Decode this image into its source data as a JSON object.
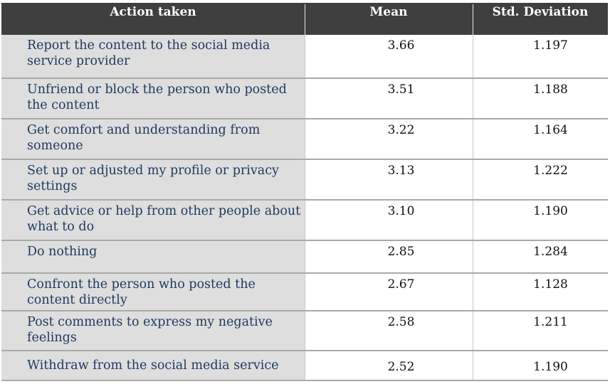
{
  "table": {
    "headers": {
      "action": "Action taken",
      "mean": "Mean",
      "sd": "Std. Deviation"
    },
    "rows": [
      {
        "action": "Report the content to the social media service provider",
        "mean": "3.66",
        "sd": "1.197"
      },
      {
        "action": " Unfriend or block the person who posted the content",
        "mean": "3.51",
        "sd": "1.188"
      },
      {
        "action": " Get comfort and understanding from someone",
        "mean": "3.22",
        "sd": "1.164"
      },
      {
        "action": " Set up or adjusted my profile or privacy settings",
        "mean": "3.13",
        "sd": "1.222"
      },
      {
        "action": " Get advice or help from other people about what to do",
        "mean": "3.10",
        "sd": "1.190"
      },
      {
        "action": " Do nothing",
        "mean": "2.85",
        "sd": "1.284"
      },
      {
        "action": "Confront the person who posted the content directly",
        "mean": "2.67",
        "sd": "1.128"
      },
      {
        "action": "Post comments to express my negative feelings",
        "mean": "2.58",
        "sd": "1.211"
      },
      {
        "action": " Withdraw from the social media service",
        "mean": "2.52",
        "sd": "1.190"
      }
    ]
  }
}
